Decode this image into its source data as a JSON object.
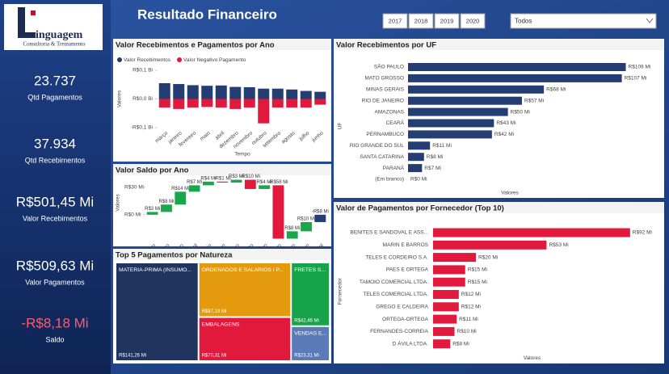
{
  "header": {
    "title": "Resultado Financeiro",
    "years": [
      "2017",
      "2018",
      "2019",
      "2020"
    ],
    "filter": "Todos"
  },
  "logo": {
    "name": "inguagem",
    "tagline": "Consultoria & Treinamento"
  },
  "kpis": [
    {
      "value": "23.737",
      "label": "Qtd Pagamentos"
    },
    {
      "value": "37.934",
      "label": "Qtd Recebimentos"
    },
    {
      "value": "R$501,45 Mi",
      "label": "Valor Recebimentos"
    },
    {
      "value": "R$509,63 Mi",
      "label": "Valor Pagamentos"
    },
    {
      "value": "-R$8,18 Mi",
      "label": "Saldo",
      "color": "#ff5a6e"
    }
  ],
  "chart_data": [
    {
      "type": "bar",
      "title": "Valor Recebimentos e Pagamentos por Ano",
      "x_label": "Tempo",
      "y_label": "Valores",
      "categories": [
        "março",
        "janeiro",
        "fevereiro",
        "maio",
        "abril",
        "dezembro",
        "novembro",
        "outubro",
        "setembro",
        "agosto",
        "julho",
        "junho"
      ],
      "series": [
        {
          "name": "Valor Recebimentos",
          "color": "#243d73",
          "values": [
            0.055,
            0.052,
            0.048,
            0.046,
            0.047,
            0.042,
            0.041,
            0.036,
            0.036,
            0.033,
            0.028,
            0.025
          ]
        },
        {
          "name": "Valor Negativo Pagamento",
          "color": "#e0193d",
          "values": [
            -0.03,
            -0.035,
            -0.03,
            -0.028,
            -0.03,
            -0.035,
            -0.03,
            -0.085,
            -0.03,
            -0.03,
            -0.03,
            -0.02
          ]
        }
      ],
      "ylim": [
        -0.1,
        0.1
      ],
      "yticks": [
        {
          "value": 0.1,
          "label": "R$0,1 Bi"
        },
        {
          "value": 0,
          "label": "R$0,0 Bi"
        },
        {
          "value": -0.1,
          "label": "-R$0,1 Bi"
        }
      ]
    },
    {
      "type": "waterfall",
      "title": "Valor Saldo por Ano",
      "y_label": "Valores",
      "categories": [
        "janeiro",
        "fevereiro",
        "março",
        "abril",
        "maio",
        "junho",
        "julho",
        "agosto",
        "setembro",
        "outubro",
        "novembro",
        "dezembro"
      ],
      "values": [
        3,
        8,
        14,
        7,
        4,
        -1,
        3,
        -10,
        4,
        -58,
        8,
        10
      ],
      "value_labels": [
        "R$3 Mi",
        "R$8 Mi",
        "R$14 Mi",
        "R$7 Mi",
        "R$4 Mi",
        "-R$1 Mi",
        "R$3 Mi",
        "-R$10 Mi",
        "R$4 Mi",
        "-R$58 Mi",
        "R$8 Mi",
        "R$10 Mi"
      ],
      "total": {
        "label": "Total",
        "value": -8,
        "value_label": "-R$8 Mi"
      },
      "colors": {
        "increase": "#1aa64a",
        "decrease": "#e0193d",
        "total": "#243d73"
      },
      "ylim": [
        -30,
        42
      ],
      "yticks": [
        {
          "value": 30,
          "label": "R$30 Mi"
        },
        {
          "value": 0,
          "label": "R$0 Mi"
        }
      ]
    },
    {
      "type": "treemap",
      "title": "Top 5 Pagamentos por Natureza",
      "categories": [
        "MATERIA-PRIMA (INSUMO...",
        "ORDENADOS E SALARIOS / P...",
        "EMBALAGENS",
        "FRETES S...",
        "VENDAS E..."
      ],
      "values": [
        141.26,
        87.19,
        70.31,
        42.46,
        23.31
      ],
      "value_labels": [
        "R$141,26 Mi",
        "R$87,19 Mi",
        "R$70,31 Mi",
        "R$42,46 Mi",
        "R$23,31 Mi"
      ],
      "colors": [
        "#1f3560",
        "#e39a0c",
        "#e0193d",
        "#17a34a",
        "#5b7bb8"
      ]
    },
    {
      "type": "hbar",
      "title": "Valor Recebimentos por UF",
      "x_label": "Valores",
      "y_label": "UF",
      "color": "#243d73",
      "categories": [
        "SÃO PAULO",
        "MATO GROSSO",
        "MINAS GERAIS",
        "RIO DE JANEIRO",
        "AMAZONAS",
        "CEARÁ",
        "PERNAMBUCO",
        "RIO GRANDE DO SUL",
        "SANTA CATARINA",
        "PARANÁ",
        "(Em branco)"
      ],
      "values": [
        109,
        107,
        68,
        57,
        50,
        43,
        42,
        11,
        8,
        7,
        0
      ],
      "value_labels": [
        "R$109 Mi",
        "R$107 Mi",
        "R$68 Mi",
        "R$57 Mi",
        "R$50 Mi",
        "R$43 Mi",
        "R$42 Mi",
        "R$11 Mi",
        "R$8 Mi",
        "R$7 Mi",
        "R$0 Mi"
      ],
      "xlim": [
        0,
        110
      ]
    },
    {
      "type": "hbar",
      "title": "Valor de Pagamentos por Fornecedor (Top 10)",
      "x_label": "Valores",
      "y_label": "Fornecedor",
      "color": "#e0193d",
      "categories": [
        "BENITES E SANDOVAL E ASS...",
        "MARIN E BARROS",
        "TELES E CORDEIRO S.A.",
        "PAES E ORTEGA",
        "TAMOIO COMERCIAL LTDA.",
        "TELES COMERCIAL LTDA.",
        "GREGO E CALDEIRA",
        "ORTEGA-ORTEGA",
        "FERNANDES-CORREIA",
        "D ÁVILA LTDA."
      ],
      "values": [
        92,
        53,
        20,
        15,
        15,
        12,
        12,
        11,
        10,
        8
      ],
      "value_labels": [
        "R$92 Mi",
        "R$53 Mi",
        "R$20 Mi",
        "R$15 Mi",
        "R$15 Mi",
        "R$12 Mi",
        "R$12 Mi",
        "R$11 Mi",
        "R$10 Mi",
        "R$8 Mi"
      ],
      "xlim": [
        0,
        100
      ]
    }
  ]
}
